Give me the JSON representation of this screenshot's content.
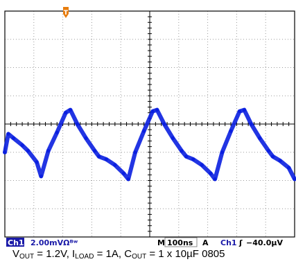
{
  "chart_data": {
    "type": "line",
    "title": "",
    "xlabel": "",
    "ylabel": "",
    "grid": true,
    "x_divisions": 10,
    "y_divisions": 8,
    "xlim": [
      0,
      1000
    ],
    "ylim": [
      -8,
      8
    ],
    "x_unit": "ns",
    "y_unit": "mV",
    "series": [
      {
        "x": [
          0,
          12,
          30,
          60,
          80,
          110,
          125,
          150,
          180,
          210,
          226,
          250,
          280,
          310,
          325,
          350,
          380,
          410,
          426,
          450,
          480,
          510,
          525,
          550,
          580,
          610,
          626,
          650,
          680,
          710,
          725,
          750,
          780,
          810,
          826,
          850,
          880,
          910,
          925,
          950,
          980,
          1000
        ],
        "y": [
          -2.0,
          -0.7,
          -1.0,
          -1.5,
          -1.9,
          -2.7,
          -3.7,
          -1.9,
          -0.6,
          0.8,
          1.0,
          0.0,
          -1.0,
          -1.9,
          -2.3,
          -2.5,
          -2.9,
          -3.5,
          -3.9,
          -2.0,
          -0.5,
          0.9,
          1.0,
          0.0,
          -1.0,
          -1.9,
          -2.3,
          -2.5,
          -2.9,
          -3.5,
          -3.9,
          -2.0,
          -0.5,
          0.9,
          1.0,
          0.0,
          -1.0,
          -1.9,
          -2.3,
          -2.6,
          -3.1,
          -3.9
        ]
      }
    ],
    "trace_color": "#0a1fe0"
  },
  "scope": {
    "channel_badge": "Ch1",
    "vertical_scale": "2.00mVΩᴮʷ",
    "timebase_label": "M",
    "timebase": "100ns",
    "trigger_mode": "A",
    "trigger_channel": "Ch1",
    "trigger_slope": "ʃ",
    "trigger_level": "−40.0µV",
    "trigger_marker": "T"
  },
  "caption": {
    "v_out_value": " = 1.2V, ",
    "i_load_value": " = 1A, ",
    "c_out_value": " = 1 x 10µF 0805"
  },
  "colors": {
    "grid_major": "#000000",
    "grid_minor": "#9a9a9a",
    "trigger_marker": "#e87d0d",
    "badge_bg": "#1a1aa8"
  }
}
